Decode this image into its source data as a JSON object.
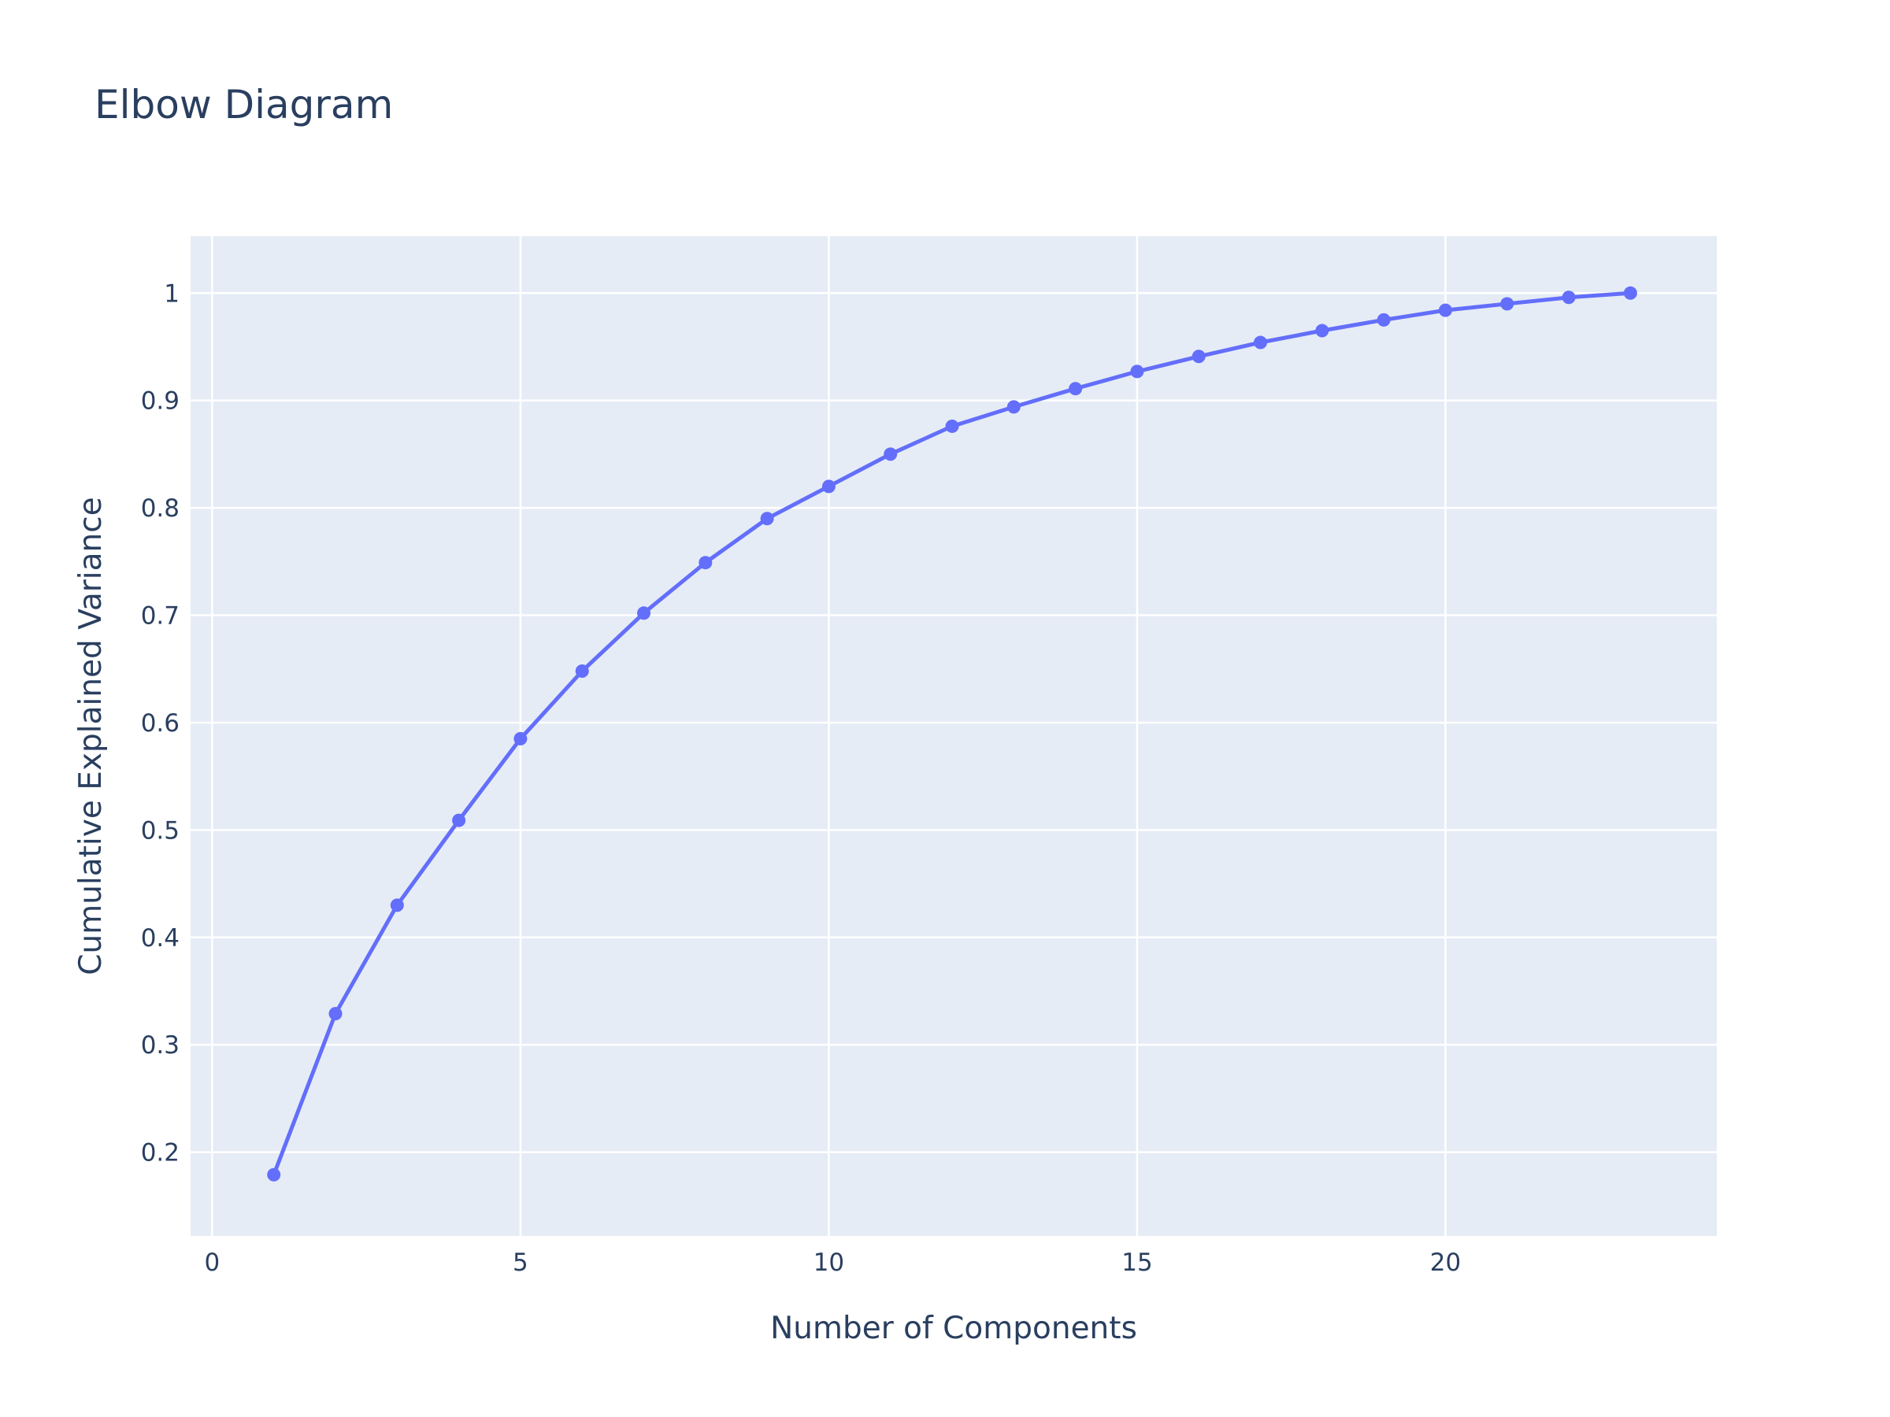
{
  "chart_data": {
    "type": "line",
    "title": "Elbow Diagram",
    "xlabel": "Number of Components",
    "ylabel": "Cumulative Explained Variance",
    "xlim": [
      -0.35,
      24.4
    ],
    "ylim": [
      0.122,
      1.053
    ],
    "xticks": [
      0,
      5,
      10,
      15,
      20
    ],
    "yticks": [
      0.2,
      0.3,
      0.4,
      0.5,
      0.6,
      0.7,
      0.8,
      0.9,
      1
    ],
    "grid": true,
    "legend": "none",
    "colors": {
      "plot_background": "#E5ECF6",
      "grid": "#ffffff",
      "line": "#636EFA",
      "text": "#2a3f5f"
    },
    "series": [
      {
        "x": [
          1,
          2,
          3,
          4,
          5,
          6,
          7,
          8,
          9,
          10,
          11,
          12,
          13,
          14,
          15,
          16,
          17,
          18,
          19,
          20,
          21,
          22,
          23
        ],
        "y": [
          0.179,
          0.329,
          0.43,
          0.509,
          0.585,
          0.648,
          0.702,
          0.749,
          0.79,
          0.82,
          0.85,
          0.876,
          0.894,
          0.911,
          0.927,
          0.941,
          0.954,
          0.965,
          0.975,
          0.984,
          0.99,
          0.996,
          1.0
        ]
      }
    ]
  }
}
